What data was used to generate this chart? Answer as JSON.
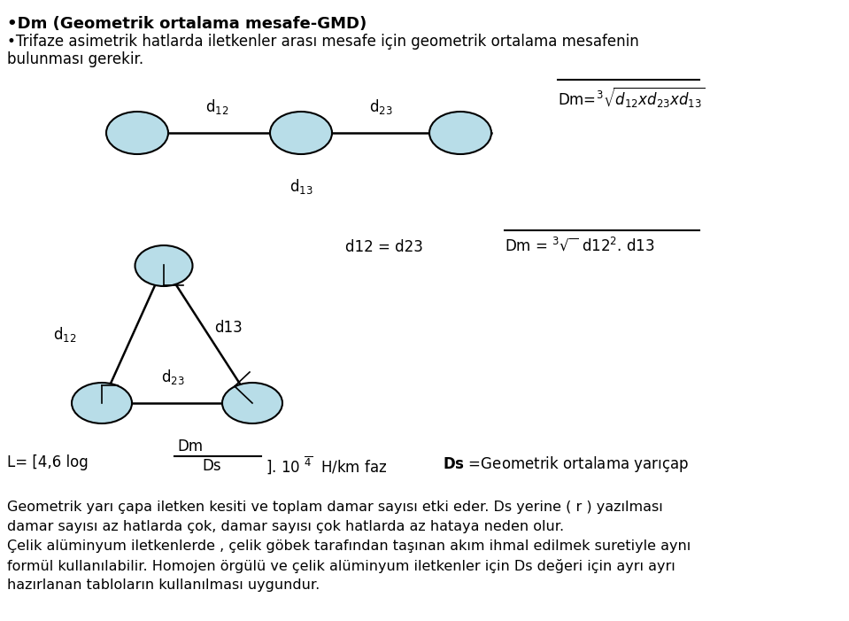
{
  "bg_color": "#ffffff",
  "ellipse_fill": "#b8dde8",
  "ellipse_edge": "#000000",
  "line_color": "#000000",
  "title1": "•Dm (Geometrik ortalama mesafe-GMD)",
  "title2": "•Trifaze asimetrik hatlarda iletkenler arası mesafe için geometrik ortalama mesafenin",
  "title3": "bulunması gerekir.",
  "text_bottom1": "Geometrik yarı çapa iletken kesiti ve toplam damar sayısı etki eder. Ds yerine ( r ) yazılması",
  "text_bottom2": "damar sayısı az hatlarda çok, damar sayısı çok hatlarda az hataya neden olur.",
  "text_bottom3": "Çelik alüminyum iletkenlerde , çelik göbek tarafından taşınan akım ihmal edilmek suretiyle aynı",
  "text_bottom4": "formül kullanılabilir. Homojen örgülü ve çelik alüminyum iletkenler için Ds değeri için ayrı ayrı",
  "text_bottom5": "hazırlanan tabloların kullanılması uygundur.",
  "ds_bold_text": "Ds =Geometrik ortalama yarıçap"
}
